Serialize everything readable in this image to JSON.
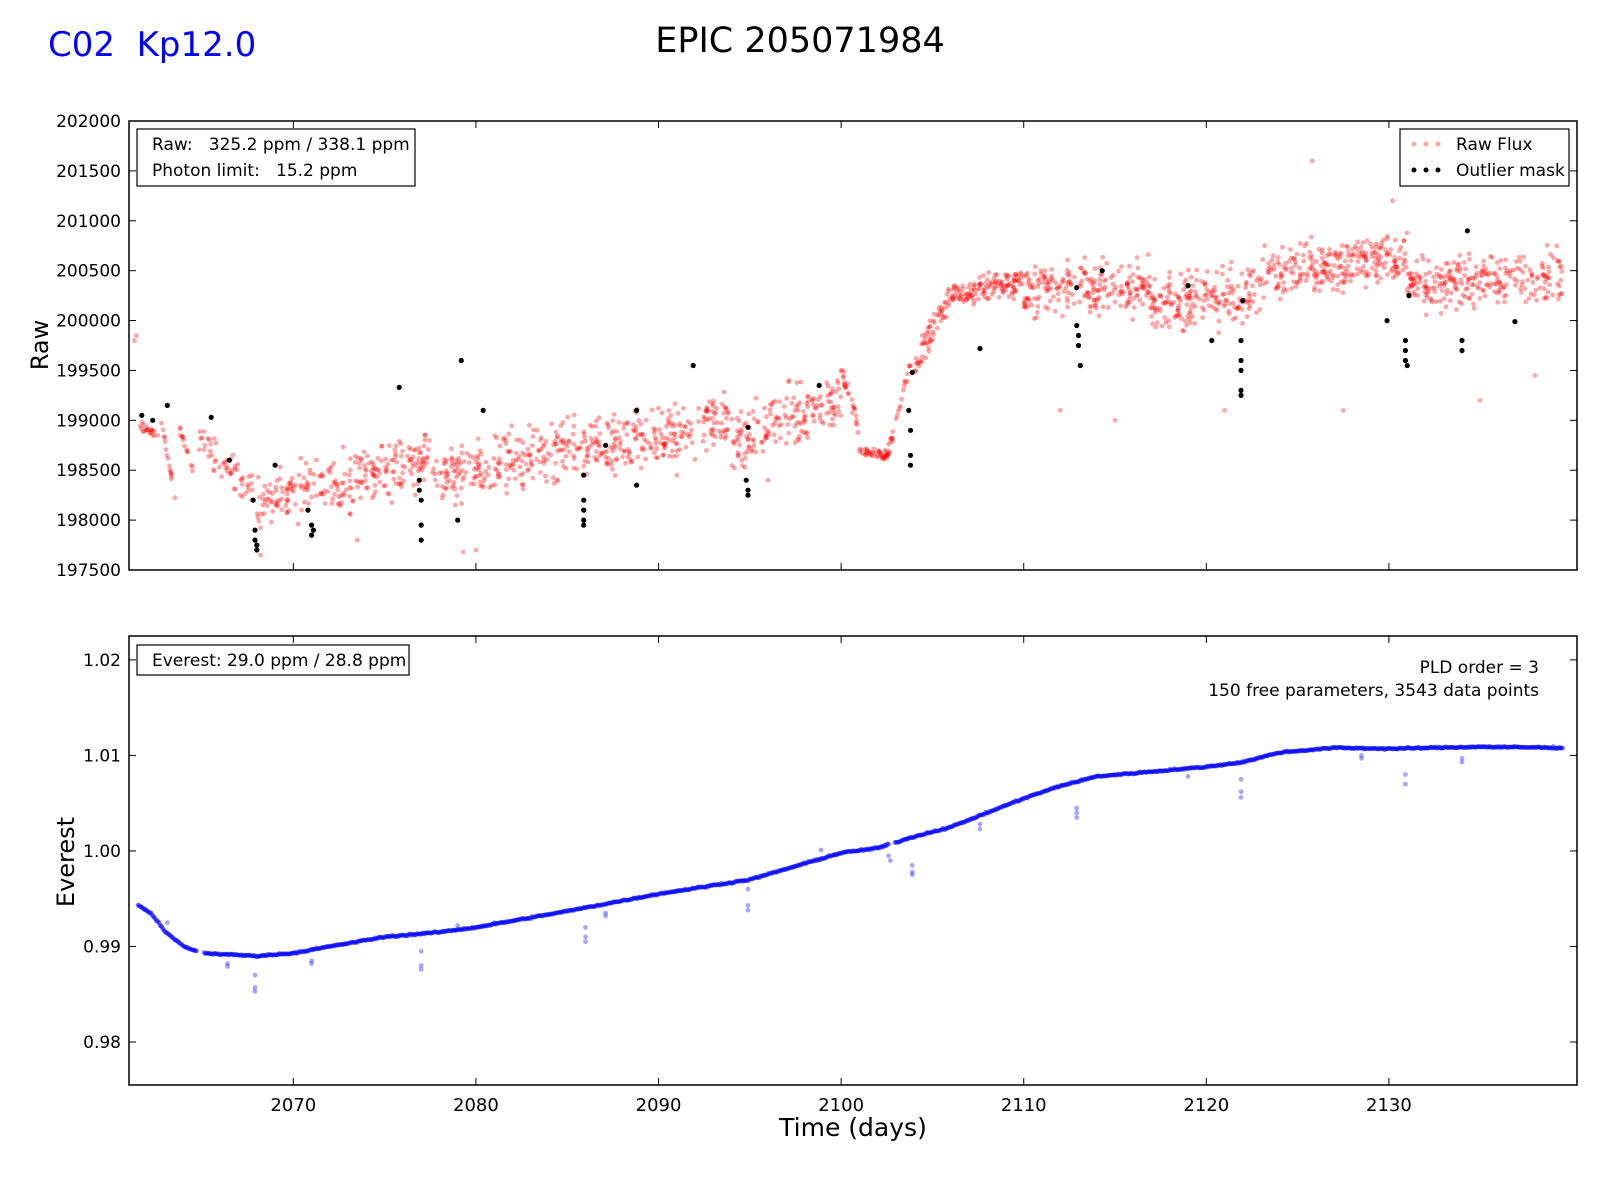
{
  "header": {
    "left_label": "C02  Kp12.0",
    "left_color": "#0000ff",
    "title": "EPIC 205071984"
  },
  "chart_data": [
    {
      "type": "scatter",
      "id": "raw",
      "ylabel": "Raw",
      "xlim": [
        2061,
        2140.3
      ],
      "ylim": [
        197500,
        202000
      ],
      "yticks": [
        197500,
        198000,
        198500,
        199000,
        199500,
        200000,
        200500,
        201000,
        201500,
        202000
      ],
      "info_box": [
        "Raw:   325.2 ppm / 338.1 ppm",
        "Photon limit:   15.2 ppm"
      ],
      "legend": {
        "position": "top-right",
        "entries": [
          {
            "label": "Raw Flux",
            "color": "#ff0000"
          },
          {
            "label": "Outlier mask",
            "color": "#000000"
          }
        ]
      },
      "series": [
        {
          "name": "Raw Flux",
          "color": "#ff0000",
          "segments": [
            {
              "start": 2061.5,
              "end": 2062.6,
              "from": 198950,
              "to": 198850,
              "jitter": 100,
              "n": 20
            },
            {
              "start": 2062.7,
              "end": 2063.6,
              "from": 199050,
              "to": 198150,
              "jitter": 80,
              "n": 16
            },
            {
              "start": 2063.7,
              "end": 2064.7,
              "from": 198950,
              "to": 198400,
              "jitter": 80,
              "n": 14
            },
            {
              "start": 2064.8,
              "end": 2067.8,
              "from": 198800,
              "to": 198300,
              "jitter": 300,
              "n": 55
            },
            {
              "start": 2068.0,
              "end": 2077.5,
              "from": 198200,
              "to": 198600,
              "jitter": 520,
              "n": 260
            },
            {
              "start": 2077.6,
              "end": 2087.0,
              "from": 198400,
              "to": 198800,
              "jitter": 520,
              "n": 260
            },
            {
              "start": 2087.0,
              "end": 2094.0,
              "from": 198700,
              "to": 199000,
              "jitter": 560,
              "n": 200
            },
            {
              "start": 2094.0,
              "end": 2100.0,
              "from": 198800,
              "to": 199200,
              "jitter": 560,
              "n": 170
            },
            {
              "start": 2100.0,
              "end": 2101.0,
              "from": 199500,
              "to": 198900,
              "jitter": 150,
              "n": 25
            },
            {
              "start": 2101.0,
              "end": 2102.6,
              "from": 198700,
              "to": 198650,
              "jitter": 90,
              "n": 45
            },
            {
              "start": 2102.6,
              "end": 2103.8,
              "from": 198700,
              "to": 199600,
              "jitter": 180,
              "n": 25
            },
            {
              "start": 2104.0,
              "end": 2106.0,
              "from": 199500,
              "to": 200300,
              "jitter": 300,
              "n": 60
            },
            {
              "start": 2106.0,
              "end": 2110.0,
              "from": 200250,
              "to": 200400,
              "jitter": 260,
              "n": 130
            },
            {
              "start": 2110.0,
              "end": 2117.0,
              "from": 200300,
              "to": 200350,
              "jitter": 480,
              "n": 220
            },
            {
              "start": 2117.0,
              "end": 2123.0,
              "from": 200150,
              "to": 200300,
              "jitter": 520,
              "n": 190
            },
            {
              "start": 2123.0,
              "end": 2131.0,
              "from": 200450,
              "to": 200650,
              "jitter": 460,
              "n": 260
            },
            {
              "start": 2131.0,
              "end": 2139.5,
              "from": 200350,
              "to": 200450,
              "jitter": 480,
              "n": 260
            }
          ],
          "extra_points": [
            [
              2061.3,
              199800
            ],
            [
              2061.4,
              199850
            ],
            [
              2125.8,
              201600
            ],
            [
              2130.2,
              201200
            ],
            [
              2068.2,
              197650
            ],
            [
              2079.3,
              197680
            ],
            [
              2080.0,
              197700
            ],
            [
              2073.5,
              197800
            ],
            [
              2112.0,
              199100
            ],
            [
              2115.0,
              199000
            ],
            [
              2121.0,
              199100
            ],
            [
              2127.5,
              199100
            ],
            [
              2135.0,
              199200
            ],
            [
              2138.0,
              199450
            ],
            [
              2096.0,
              198400
            ],
            [
              2091.0,
              198450
            ]
          ]
        },
        {
          "name": "Outlier mask",
          "color": "#000000",
          "points": [
            [
              2061.7,
              199050
            ],
            [
              2062.3,
              199000
            ],
            [
              2063.1,
              199150
            ],
            [
              2065.5,
              199030
            ],
            [
              2066.5,
              198600
            ],
            [
              2067.8,
              198200
            ],
            [
              2067.9,
              197900
            ],
            [
              2067.9,
              197800
            ],
            [
              2068.0,
              197700
            ],
            [
              2068.0,
              197750
            ],
            [
              2069.0,
              198550
            ],
            [
              2070.8,
              198100
            ],
            [
              2071.0,
              197950
            ],
            [
              2071.0,
              197850
            ],
            [
              2071.1,
              197900
            ],
            [
              2075.8,
              199330
            ],
            [
              2076.9,
              198400
            ],
            [
              2076.9,
              198300
            ],
            [
              2077.0,
              197950
            ],
            [
              2077.0,
              197800
            ],
            [
              2077.0,
              198200
            ],
            [
              2079.0,
              198000
            ],
            [
              2079.2,
              199600
            ],
            [
              2080.4,
              199100
            ],
            [
              2085.9,
              198450
            ],
            [
              2085.9,
              198200
            ],
            [
              2085.9,
              198000
            ],
            [
              2085.9,
              197950
            ],
            [
              2085.9,
              198100
            ],
            [
              2087.1,
              198750
            ],
            [
              2088.8,
              199100
            ],
            [
              2088.8,
              198350
            ],
            [
              2091.9,
              199550
            ],
            [
              2094.8,
              198400
            ],
            [
              2094.9,
              198300
            ],
            [
              2094.9,
              198250
            ],
            [
              2094.9,
              198930
            ],
            [
              2098.8,
              199350
            ],
            [
              2103.7,
              199100
            ],
            [
              2103.8,
              198900
            ],
            [
              2103.8,
              198650
            ],
            [
              2103.8,
              198550
            ],
            [
              2103.9,
              199480
            ],
            [
              2107.6,
              199720
            ],
            [
              2112.9,
              200330
            ],
            [
              2112.9,
              199950
            ],
            [
              2113.0,
              199850
            ],
            [
              2113.0,
              199750
            ],
            [
              2113.1,
              199550
            ],
            [
              2114.3,
              200500
            ],
            [
              2119.0,
              200350
            ],
            [
              2120.3,
              199800
            ],
            [
              2121.9,
              199800
            ],
            [
              2121.9,
              199600
            ],
            [
              2121.9,
              199500
            ],
            [
              2121.9,
              199300
            ],
            [
              2122.0,
              200200
            ],
            [
              2121.9,
              199250
            ],
            [
              2129.9,
              200000
            ],
            [
              2130.9,
              199800
            ],
            [
              2130.9,
              199700
            ],
            [
              2130.9,
              199600
            ],
            [
              2131.0,
              199550
            ],
            [
              2131.1,
              200250
            ],
            [
              2134.0,
              199800
            ],
            [
              2134.0,
              199700
            ],
            [
              2134.3,
              200900
            ],
            [
              2136.9,
              199990
            ]
          ]
        }
      ]
    },
    {
      "type": "scatter",
      "id": "everest",
      "ylabel": "Everest",
      "xlabel": "Time (days)",
      "xlim": [
        2061,
        2140.3
      ],
      "xticks": [
        2070,
        2080,
        2090,
        2100,
        2110,
        2120,
        2130
      ],
      "ylim": [
        0.9755,
        1.0225
      ],
      "yticks": [
        0.98,
        0.99,
        1.0,
        1.01,
        1.02
      ],
      "ytick_labels": [
        "0.98",
        "0.99",
        "1.00",
        "1.01",
        "1.02"
      ],
      "info_box": [
        "Everest: 29.0 ppm / 28.8 ppm"
      ],
      "annotation": [
        "PLD order = 3",
        "150 free parameters, 3543 data points"
      ],
      "series": [
        {
          "name": "Everest",
          "color": "#0000ff",
          "trend": [
            [
              2061.5,
              0.9943
            ],
            [
              2062.2,
              0.9935
            ],
            [
              2063.0,
              0.9915
            ],
            [
              2064.0,
              0.99
            ],
            [
              2065.0,
              0.9893
            ],
            [
              2066.0,
              0.9892
            ],
            [
              2068.0,
              0.989
            ],
            [
              2070.0,
              0.9893
            ],
            [
              2072.0,
              0.99
            ],
            [
              2075.0,
              0.991
            ],
            [
              2078.0,
              0.9915
            ],
            [
              2080.0,
              0.992
            ],
            [
              2085.0,
              0.9937
            ],
            [
              2090.0,
              0.9955
            ],
            [
              2095.0,
              0.997
            ],
            [
              2100.0,
              0.9998
            ],
            [
              2102.0,
              1.0003
            ],
            [
              2104.0,
              1.0015
            ],
            [
              2106.0,
              1.0025
            ],
            [
              2108.0,
              1.004
            ],
            [
              2110.0,
              1.0055
            ],
            [
              2112.0,
              1.0068
            ],
            [
              2114.0,
              1.0078
            ],
            [
              2117.0,
              1.0083
            ],
            [
              2120.0,
              1.0088
            ],
            [
              2122.0,
              1.0093
            ],
            [
              2124.0,
              1.0103
            ],
            [
              2127.0,
              1.0108
            ],
            [
              2130.0,
              1.0107
            ],
            [
              2135.0,
              1.0109
            ],
            [
              2139.5,
              1.0108
            ]
          ],
          "gaps": [
            [
              2064.7,
              2065.1
            ],
            [
              2102.6,
              2102.9
            ]
          ],
          "dips": [
            [
              2066.4,
              0.9882
            ],
            [
              2066.4,
              0.9879
            ],
            [
              2067.9,
              0.987
            ],
            [
              2067.9,
              0.9857
            ],
            [
              2067.9,
              0.9853
            ],
            [
              2071.0,
              0.9885
            ],
            [
              2071.0,
              0.9882
            ],
            [
              2077.0,
              0.9895
            ],
            [
              2077.0,
              0.988
            ],
            [
              2077.0,
              0.9876
            ],
            [
              2086.0,
              0.992
            ],
            [
              2086.0,
              0.991
            ],
            [
              2086.0,
              0.9905
            ],
            [
              2087.1,
              0.9935
            ],
            [
              2087.1,
              0.9932
            ],
            [
              2094.9,
              0.996
            ],
            [
              2094.9,
              0.9943
            ],
            [
              2094.9,
              0.9938
            ],
            [
              2102.6,
              0.9995
            ],
            [
              2102.7,
              0.999
            ],
            [
              2103.9,
              0.9985
            ],
            [
              2103.9,
              0.9978
            ],
            [
              2103.9,
              0.9975
            ],
            [
              2107.6,
              1.0028
            ],
            [
              2107.6,
              1.0023
            ],
            [
              2112.9,
              1.0045
            ],
            [
              2112.9,
              1.004
            ],
            [
              2112.9,
              1.0035
            ],
            [
              2119.0,
              1.0078
            ],
            [
              2121.9,
              1.0075
            ],
            [
              2121.9,
              1.0062
            ],
            [
              2121.9,
              1.0056
            ],
            [
              2128.5,
              1.01
            ],
            [
              2128.5,
              1.0097
            ],
            [
              2130.9,
              1.008
            ],
            [
              2130.9,
              1.007
            ],
            [
              2134.0,
              1.0097
            ],
            [
              2134.0,
              1.0093
            ],
            [
              2063.1,
              0.9925
            ],
            [
              2098.9,
              1.0001
            ],
            [
              2081.0,
              0.9925
            ],
            [
              2079.0,
              0.9922
            ]
          ]
        }
      ]
    }
  ]
}
